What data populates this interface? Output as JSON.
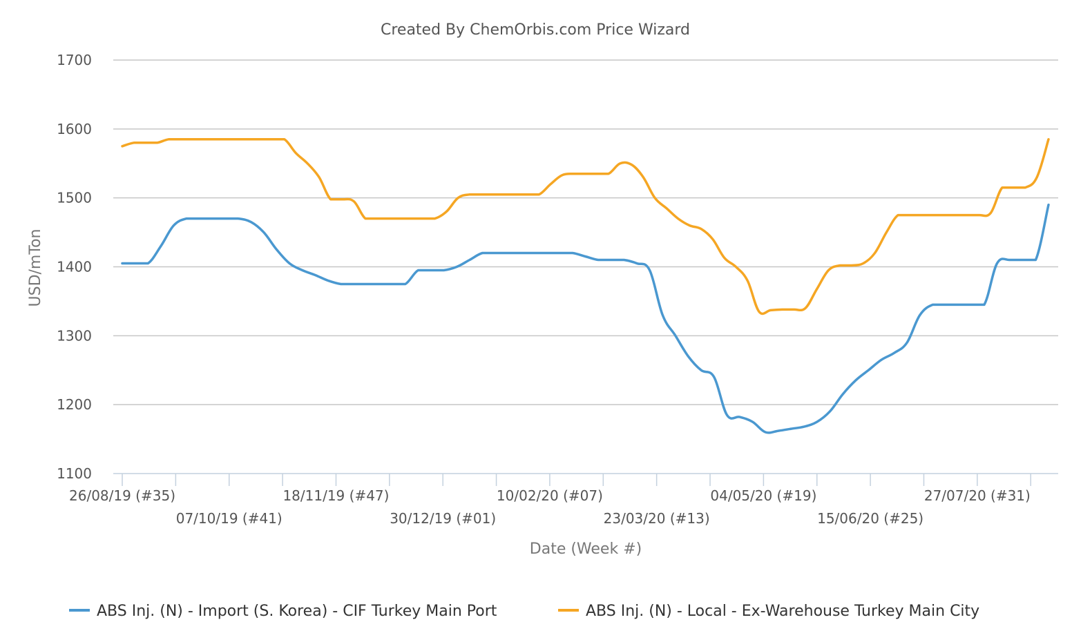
{
  "chart_data": {
    "type": "line",
    "title": "Created By ChemOrbis.com Price Wizard",
    "xlabel": "Date (Week #)",
    "ylabel": "USD/mTon",
    "ylim": [
      1100,
      1700
    ],
    "yticks": [
      "1700",
      "1600",
      "1500",
      "1400",
      "1300",
      "1200",
      "1100"
    ],
    "grid": true,
    "legend_position": "bottom",
    "x_tick_labels": [
      "26/08/19 (#35)",
      "07/10/19 (#41)",
      "18/11/19 (#47)",
      "30/12/19 (#01)",
      "10/02/20 (#07)",
      "23/03/20 (#13)",
      "04/05/20 (#19)",
      "15/06/20 (#25)",
      "27/07/20 (#31)"
    ],
    "x_tick_weeks": [
      0,
      6,
      12,
      18,
      24,
      30,
      36,
      42,
      48
    ],
    "x_minor_ticks": [
      3,
      9,
      15,
      21,
      27,
      33,
      39,
      45,
      51
    ],
    "x_count": 53,
    "series": [
      {
        "name": "ABS Inj. (N) - Import (S. Korea) - CIF Turkey Main Port",
        "color": "#4a98d0",
        "values": [
          1405,
          1405,
          1405,
          1430,
          1460,
          1470,
          1470,
          1470,
          1470,
          1470,
          1465,
          1450,
          1425,
          1405,
          1395,
          1388,
          1380,
          1375,
          1375,
          1375,
          1375,
          1375,
          1375,
          1395,
          1395,
          1395,
          1400,
          1410,
          1420,
          1420,
          1420,
          1420,
          1420,
          1420,
          1420,
          1420,
          1415,
          1410,
          1410,
          1410,
          1405,
          1395,
          1330,
          1300,
          1270,
          1250,
          1240,
          1185,
          1182,
          1175,
          1160,
          1162,
          1165,
          1168,
          1175,
          1190,
          1215,
          1235,
          1250,
          1265,
          1275,
          1290,
          1330,
          1345,
          1345,
          1345,
          1345,
          1345,
          1405,
          1410,
          1410,
          1410,
          1490
        ]
      },
      {
        "name": "ABS Inj. (N) - Local - Ex-Warehouse Turkey Main City",
        "color": "#f5a623",
        "values": [
          1575,
          1580,
          1580,
          1580,
          1585,
          1585,
          1585,
          1585,
          1585,
          1585,
          1585,
          1585,
          1585,
          1585,
          1585,
          1565,
          1550,
          1530,
          1498,
          1498,
          1495,
          1470,
          1470,
          1470,
          1470,
          1470,
          1470,
          1470,
          1480,
          1500,
          1505,
          1505,
          1505,
          1505,
          1505,
          1505,
          1505,
          1520,
          1533,
          1535,
          1535,
          1535,
          1535,
          1550,
          1548,
          1530,
          1500,
          1485,
          1470,
          1460,
          1455,
          1440,
          1413,
          1400,
          1380,
          1335,
          1337,
          1338,
          1338,
          1340,
          1368,
          1395,
          1402,
          1402,
          1405,
          1420,
          1450,
          1475,
          1475,
          1475,
          1475,
          1475,
          1475,
          1475,
          1475,
          1478,
          1515,
          1515,
          1515,
          1530,
          1585
        ]
      }
    ]
  }
}
